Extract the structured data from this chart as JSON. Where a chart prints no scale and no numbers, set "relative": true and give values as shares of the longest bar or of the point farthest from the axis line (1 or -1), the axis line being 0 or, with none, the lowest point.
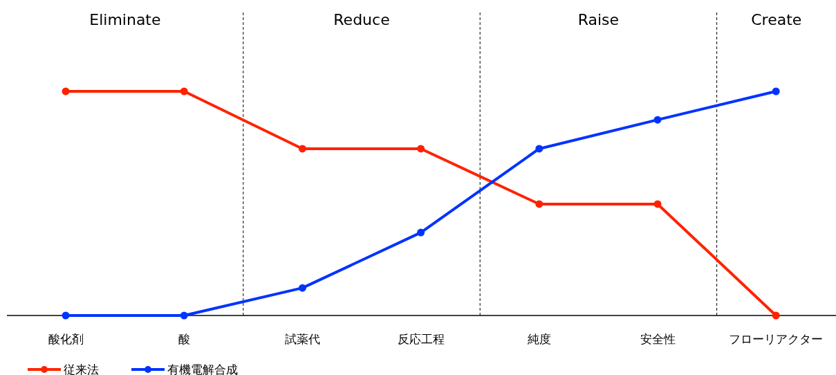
{
  "chart_data": {
    "type": "line",
    "relative": true,
    "categories": [
      "酸化剤",
      "酸",
      "試薬代",
      "反応工程",
      "純度",
      "安全性",
      "フローリアクター"
    ],
    "series": [
      {
        "name": "従来法",
        "color": "#ff2200",
        "values": [
          1,
          1,
          0.744,
          0.744,
          0.497,
          0.497,
          0
        ]
      },
      {
        "name": "有機電解合成",
        "color": "#0033ff",
        "values": [
          0,
          0,
          0.123,
          0.37,
          0.744,
          0.873,
          1
        ]
      }
    ],
    "annotations": [
      "Eliminate",
      "Reduce",
      "Raise",
      "Create"
    ],
    "marker": "circle",
    "line_style": "solid",
    "legend": "bottom left"
  }
}
